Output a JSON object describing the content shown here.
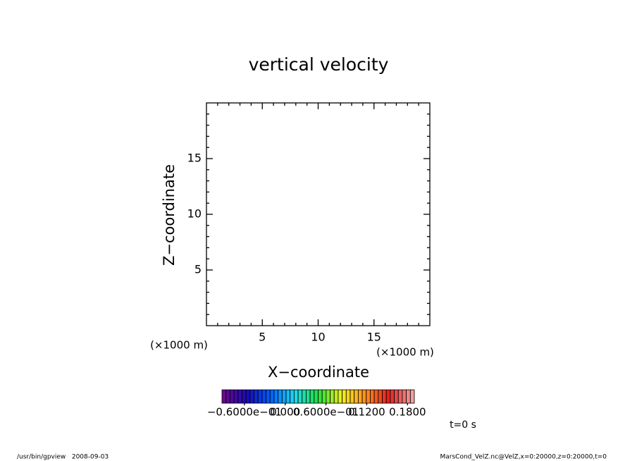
{
  "chart_data": {
    "type": "line",
    "title": "vertical velocity",
    "xlabel": "X−coordinate",
    "ylabel": "Z−coordinate",
    "xunit": "(×1000 m)",
    "yunit": "(×1000 m)",
    "xlim": [
      0,
      20
    ],
    "ylim": [
      0,
      20
    ],
    "xticks": [
      5,
      10,
      15
    ],
    "yticks": [
      5,
      10,
      15
    ],
    "xminor_ticks": [
      1,
      2,
      3,
      4,
      6,
      7,
      8,
      9,
      11,
      12,
      13,
      14,
      16,
      17,
      18,
      19
    ],
    "yminor_ticks": [
      1,
      2,
      3,
      4,
      6,
      7,
      8,
      9,
      11,
      12,
      13,
      14,
      16,
      17,
      18,
      19
    ],
    "series": [],
    "colorbar": {
      "lim": [
        -0.093,
        0.19
      ],
      "boxes": 48,
      "colors": [
        "#6a0a8a",
        "#1a0ab0",
        "#0060ff",
        "#20d8f0",
        "#20e040",
        "#f0f020",
        "#ff9020",
        "#e02020",
        "#f0a0a0"
      ],
      "ticks": [
        {
          "value": -0.06,
          "label": "−0.6000e−01"
        },
        {
          "value": 0,
          "label": "0.000"
        },
        {
          "value": 0.06,
          "label": "0.6000e−01"
        },
        {
          "value": 0.12,
          "label": "0.1200"
        },
        {
          "value": 0.18,
          "label": "0.1800"
        }
      ]
    },
    "time_label": "t=0 s",
    "footer_left": "/usr/bin/gpview   2008-09-03",
    "footer_right": "MarsCond_VelZ.nc@VelZ,x=0:20000,z=0:20000,t=0"
  }
}
